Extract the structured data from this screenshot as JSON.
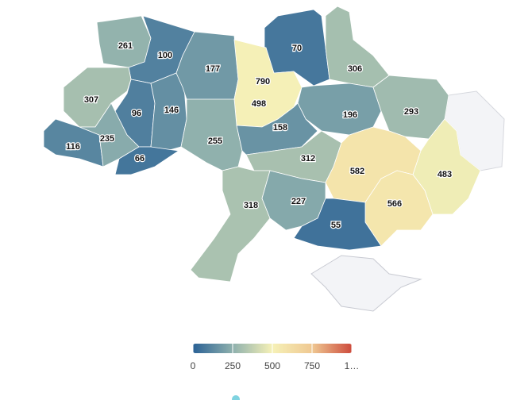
{
  "chart_data": {
    "type": "choropleth",
    "values": [
      261,
      100,
      70,
      306,
      307,
      96,
      146,
      177,
      790,
      498,
      196,
      293,
      116,
      235,
      66,
      255,
      158,
      312,
      582,
      483,
      318,
      227,
      566,
      55
    ],
    "colorscale": [
      "#2a6195",
      "#8eb0ad",
      "#f6f1b7",
      "#efc892",
      "#cd4b3c"
    ],
    "colorlim": [
      0,
      1000
    ],
    "colorticks": [
      0,
      250,
      500,
      750,
      {
        "value": 1000,
        "label": "1…"
      }
    ]
  }
}
